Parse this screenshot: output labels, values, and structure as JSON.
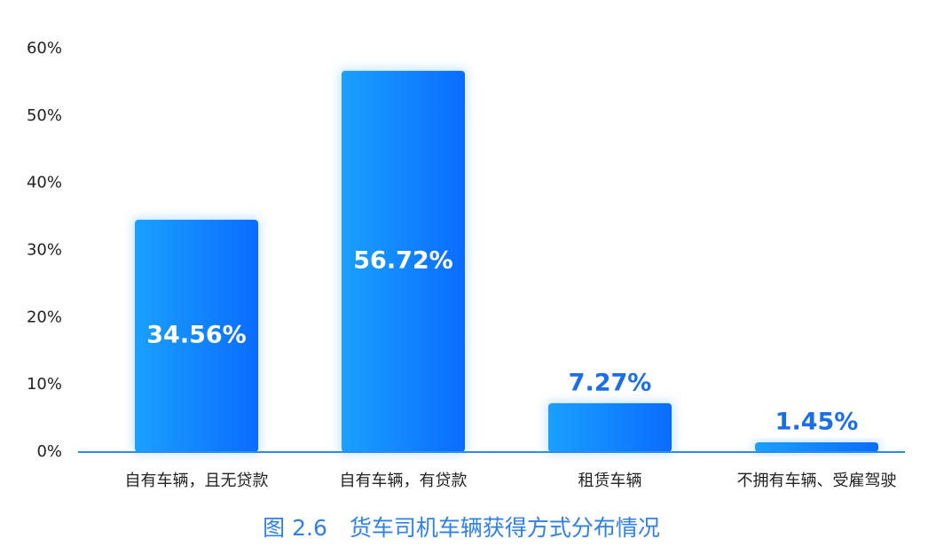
{
  "chart_data": {
    "type": "bar",
    "title": "图 2.6　货车司机车辆获得方式分布情况",
    "categories": [
      "自有车辆，且无贷款",
      "自有车辆，有贷款",
      "租赁车辆",
      "不拥有车辆、受雇驾驶"
    ],
    "values": [
      34.56,
      56.72,
      7.27,
      1.45
    ],
    "value_labels": [
      "34.56%",
      "56.72%",
      "7.27%",
      "1.45%"
    ],
    "color": "#0a6cff",
    "ylim": [
      0,
      60
    ],
    "yticks": [
      {
        "value": 0,
        "label": "0%"
      },
      {
        "value": 10,
        "label": "10%"
      },
      {
        "value": 20,
        "label": "20%"
      },
      {
        "value": 30,
        "label": "30%"
      },
      {
        "value": 40,
        "label": "40%"
      },
      {
        "value": 50,
        "label": "50%"
      },
      {
        "value": 60,
        "label": "60%"
      }
    ],
    "grid": false
  }
}
